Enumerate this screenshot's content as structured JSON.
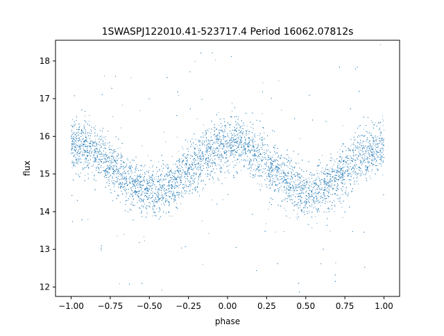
{
  "chart_data": {
    "type": "scatter",
    "title": "1SWASPJ122010.41-523717.4 Period 16062.07812s",
    "xlabel": "phase",
    "ylabel": "flux",
    "xlim": [
      -1.1,
      1.1
    ],
    "ylim": [
      11.75,
      18.55
    ],
    "x_ticks": [
      -1.0,
      -0.75,
      -0.5,
      -0.25,
      0.0,
      0.25,
      0.5,
      0.75,
      1.0
    ],
    "x_tick_labels": [
      "−1.00",
      "−0.75",
      "−0.50",
      "−0.25",
      "0.00",
      "0.25",
      "0.50",
      "0.75",
      "1.00"
    ],
    "y_ticks": [
      12,
      13,
      14,
      15,
      16,
      17,
      18
    ],
    "y_tick_labels": [
      "12",
      "13",
      "14",
      "15",
      "16",
      "17",
      "18"
    ],
    "grid": false,
    "marker_color": "#1f77b4",
    "series": [
      {
        "x": [
          -1.0,
          -0.9,
          -0.8,
          -0.7,
          -0.6,
          -0.5,
          -0.45,
          -0.4,
          -0.3,
          -0.2,
          -0.1,
          0.0,
          0.05,
          0.1,
          0.2,
          0.3,
          0.4,
          0.5,
          0.55,
          0.6,
          0.7,
          0.8,
          0.9,
          1.0
        ],
        "y": [
          15.75,
          15.72,
          15.45,
          15.1,
          14.75,
          14.52,
          14.5,
          14.58,
          14.9,
          15.28,
          15.6,
          15.78,
          15.8,
          15.72,
          15.45,
          15.1,
          14.75,
          14.52,
          14.5,
          14.58,
          14.92,
          15.28,
          15.55,
          15.72
        ],
        "scatter_sd": 0.35
      }
    ]
  }
}
